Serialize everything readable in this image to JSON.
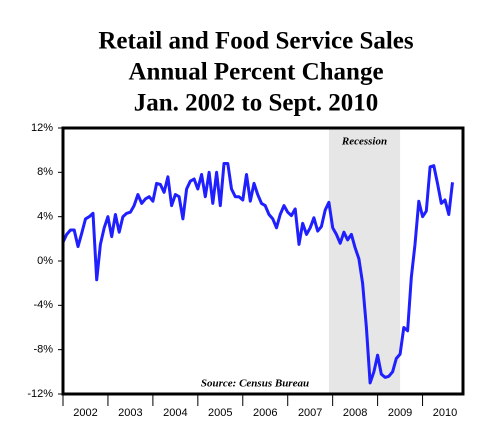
{
  "chart_data": {
    "type": "line",
    "title": [
      "Retail and Food Service Sales",
      "Annual Percent Change",
      "Jan. 2002 to Sept. 2010"
    ],
    "annotation": "Source: Census Bureau",
    "recession": {
      "label": "Recession",
      "start": 2007.917,
      "end": 2009.5,
      "color": "#e6e6e6"
    },
    "xlim": [
      2002,
      2010.9
    ],
    "xticks": [
      {
        "value": 2002,
        "label": "2002"
      },
      {
        "value": 2003,
        "label": "2003"
      },
      {
        "value": 2004,
        "label": "2004"
      },
      {
        "value": 2005,
        "label": "2005"
      },
      {
        "value": 2006,
        "label": "2006"
      },
      {
        "value": 2007,
        "label": "2007"
      },
      {
        "value": 2008,
        "label": "2008"
      },
      {
        "value": 2009,
        "label": "2009"
      },
      {
        "value": 2010,
        "label": "2010"
      }
    ],
    "ylim": [
      -12,
      12
    ],
    "yticks": [
      {
        "value": -12,
        "label": "-12%"
      },
      {
        "value": -8,
        "label": "-8%"
      },
      {
        "value": -4,
        "label": "-4%"
      },
      {
        "value": 0,
        "label": "0%"
      },
      {
        "value": 4,
        "label": "4%"
      },
      {
        "value": 8,
        "label": "8%"
      },
      {
        "value": 12,
        "label": "12%"
      }
    ],
    "series": [
      {
        "color": "#1f1fff",
        "x": [
          2002,
          2002.083,
          2002.167,
          2002.25,
          2002.333,
          2002.417,
          2002.5,
          2002.583,
          2002.667,
          2002.75,
          2002.833,
          2002.917,
          2003,
          2003.083,
          2003.167,
          2003.25,
          2003.333,
          2003.417,
          2003.5,
          2003.583,
          2003.667,
          2003.75,
          2003.833,
          2003.917,
          2004,
          2004.083,
          2004.167,
          2004.25,
          2004.333,
          2004.417,
          2004.5,
          2004.583,
          2004.667,
          2004.75,
          2004.833,
          2004.917,
          2005,
          2005.083,
          2005.167,
          2005.25,
          2005.333,
          2005.417,
          2005.5,
          2005.583,
          2005.667,
          2005.75,
          2005.833,
          2005.917,
          2006,
          2006.083,
          2006.167,
          2006.25,
          2006.333,
          2006.417,
          2006.5,
          2006.583,
          2006.667,
          2006.75,
          2006.833,
          2006.917,
          2007,
          2007.083,
          2007.167,
          2007.25,
          2007.333,
          2007.417,
          2007.5,
          2007.583,
          2007.667,
          2007.75,
          2007.833,
          2007.917,
          2008,
          2008.083,
          2008.167,
          2008.25,
          2008.333,
          2008.417,
          2008.5,
          2008.583,
          2008.667,
          2008.75,
          2008.833,
          2008.917,
          2009,
          2009.083,
          2009.167,
          2009.25,
          2009.333,
          2009.417,
          2009.5,
          2009.583,
          2009.667,
          2009.75,
          2009.833,
          2009.917,
          2010,
          2010.083,
          2010.167,
          2010.25,
          2010.333,
          2010.417,
          2010.5,
          2010.583,
          2010.667
        ],
        "values": [
          1.7,
          2.4,
          2.8,
          2.8,
          1.3,
          2.5,
          3.8,
          4.0,
          4.3,
          -1.7,
          1.5,
          3.0,
          4.0,
          2.2,
          4.2,
          2.6,
          4.0,
          4.3,
          4.4,
          5.0,
          6.0,
          5.2,
          5.6,
          5.8,
          5.4,
          7.0,
          6.9,
          6.2,
          7.6,
          5.0,
          6.0,
          5.8,
          3.8,
          6.5,
          7.2,
          7.4,
          6.5,
          7.8,
          5.8,
          8.0,
          5.2,
          8.0,
          5.0,
          8.8,
          8.8,
          6.5,
          5.8,
          5.8,
          5.5,
          7.8,
          5.4,
          7.0,
          6.0,
          5.2,
          5.0,
          4.2,
          3.8,
          3.0,
          4.2,
          5.0,
          4.4,
          4.1,
          4.7,
          1.5,
          3.4,
          2.4,
          3.0,
          3.9,
          2.7,
          3.1,
          4.6,
          5.3,
          3.0,
          2.4,
          1.6,
          2.6,
          1.9,
          2.4,
          1.2,
          0.2,
          -2.0,
          -6.0,
          -11.0,
          -10.0,
          -8.5,
          -10.2,
          -10.5,
          -10.4,
          -10.0,
          -8.8,
          -8.4,
          -6.0,
          -6.3,
          -1.5,
          1.5,
          5.4,
          4.0,
          4.5,
          8.5,
          8.6,
          7.0,
          5.2,
          5.5,
          4.2,
          7.1
        ]
      }
    ]
  }
}
